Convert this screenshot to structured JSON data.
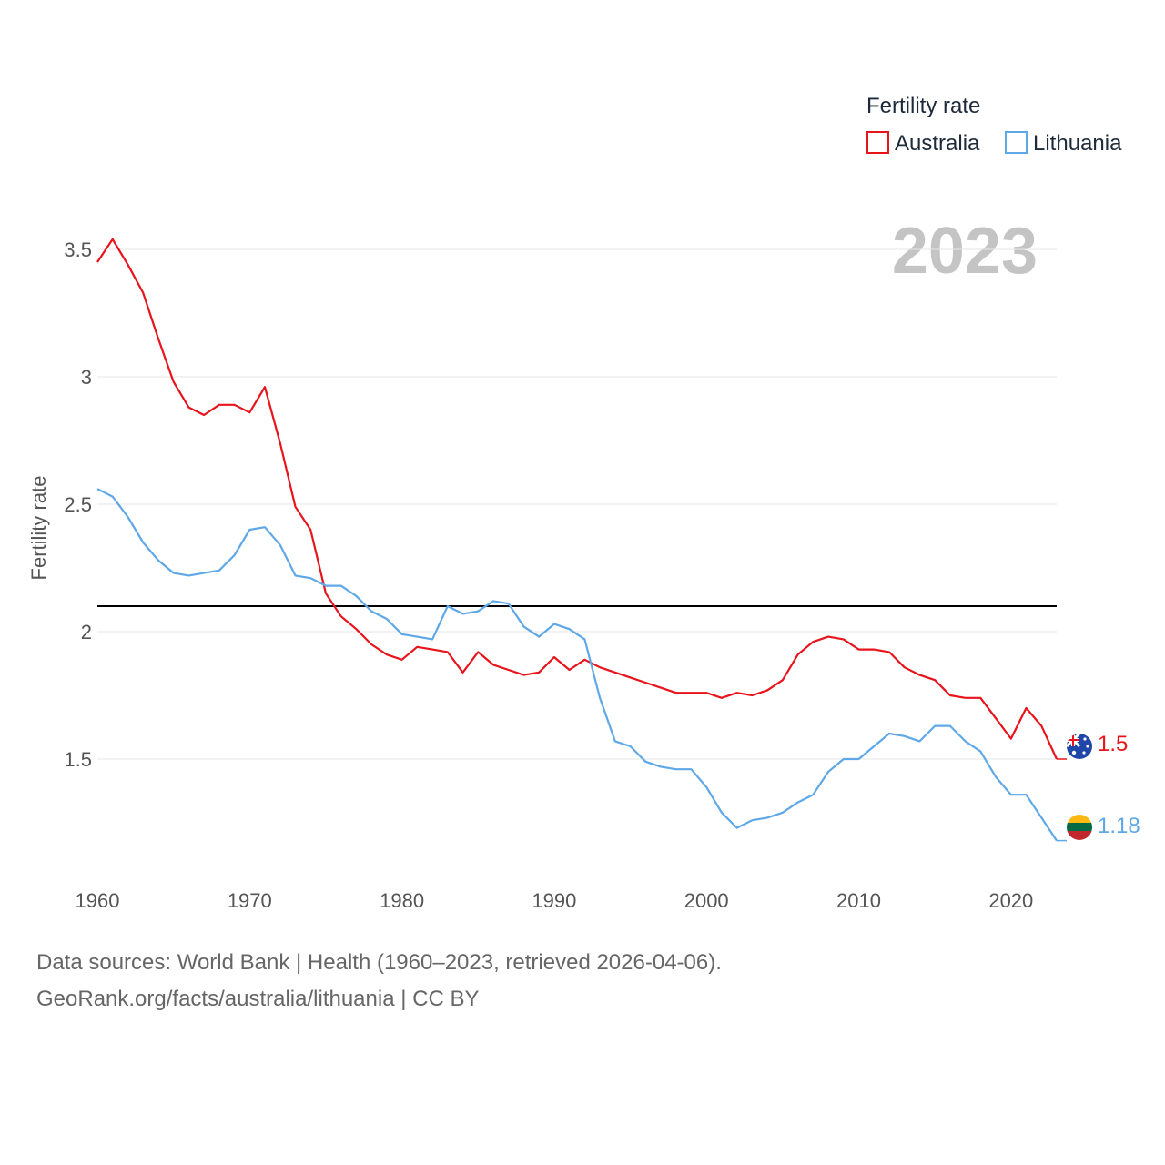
{
  "chart_data": {
    "type": "line",
    "title": "Fertility rate",
    "ylabel": "Fertility rate",
    "xlabel": "",
    "year_label": "2023",
    "xlim": [
      1960,
      2023
    ],
    "ylim": [
      1.05,
      3.65
    ],
    "x_ticks": [
      1960,
      1970,
      1980,
      1990,
      2000,
      2010,
      2020
    ],
    "y_ticks": [
      {
        "value": 1.5,
        "label": "1.5"
      },
      {
        "value": 2,
        "label": "2"
      },
      {
        "value": 2.5,
        "label": "2.5"
      },
      {
        "value": 3,
        "label": "3"
      },
      {
        "value": 3.5,
        "label": "3.5"
      }
    ],
    "reference_line": 2.1,
    "grid": true,
    "legend_position": "top-right",
    "x": [
      1960,
      1961,
      1962,
      1963,
      1964,
      1965,
      1966,
      1967,
      1968,
      1969,
      1970,
      1971,
      1972,
      1973,
      1974,
      1975,
      1976,
      1977,
      1978,
      1979,
      1980,
      1981,
      1982,
      1983,
      1984,
      1985,
      1986,
      1987,
      1988,
      1989,
      1990,
      1991,
      1992,
      1993,
      1994,
      1995,
      1996,
      1997,
      1998,
      1999,
      2000,
      2001,
      2002,
      2003,
      2004,
      2005,
      2006,
      2007,
      2008,
      2009,
      2010,
      2011,
      2012,
      2013,
      2014,
      2015,
      2016,
      2017,
      2018,
      2019,
      2020,
      2021,
      2022,
      2023
    ],
    "series": [
      {
        "name": "Australia",
        "color": "#e8141c",
        "end_label": "1.5",
        "values": [
          3.45,
          3.54,
          3.44,
          3.33,
          3.15,
          2.98,
          2.88,
          2.85,
          2.89,
          2.89,
          2.86,
          2.96,
          2.74,
          2.49,
          2.4,
          2.15,
          2.06,
          2.01,
          1.95,
          1.91,
          1.89,
          1.94,
          1.93,
          1.92,
          1.84,
          1.92,
          1.87,
          1.85,
          1.83,
          1.84,
          1.9,
          1.85,
          1.89,
          1.86,
          1.84,
          1.82,
          1.8,
          1.78,
          1.76,
          1.76,
          1.76,
          1.74,
          1.76,
          1.75,
          1.77,
          1.81,
          1.91,
          1.96,
          1.98,
          1.97,
          1.93,
          1.93,
          1.92,
          1.86,
          1.83,
          1.81,
          1.75,
          1.74,
          1.74,
          1.66,
          1.58,
          1.7,
          1.63,
          1.5
        ]
      },
      {
        "name": "Lithuania",
        "color": "#5fa8e8",
        "end_label": "1.18",
        "values": [
          2.56,
          2.53,
          2.45,
          2.35,
          2.28,
          2.23,
          2.22,
          2.23,
          2.24,
          2.3,
          2.4,
          2.41,
          2.34,
          2.22,
          2.21,
          2.18,
          2.18,
          2.14,
          2.08,
          2.05,
          1.99,
          1.98,
          1.97,
          2.1,
          2.07,
          2.08,
          2.12,
          2.11,
          2.02,
          1.98,
          2.03,
          2.01,
          1.97,
          1.74,
          1.57,
          1.55,
          1.49,
          1.47,
          1.46,
          1.46,
          1.39,
          1.29,
          1.23,
          1.26,
          1.27,
          1.29,
          1.33,
          1.36,
          1.45,
          1.5,
          1.5,
          1.55,
          1.6,
          1.59,
          1.57,
          1.63,
          1.63,
          1.57,
          1.53,
          1.43,
          1.36,
          1.36,
          1.27,
          1.18
        ]
      }
    ]
  },
  "footer": {
    "line1": "Data sources: World Bank | Health (1960–2023, retrieved 2026-04-06).",
    "line2": "GeoRank.org/facts/australia/lithuania | CC BY"
  }
}
